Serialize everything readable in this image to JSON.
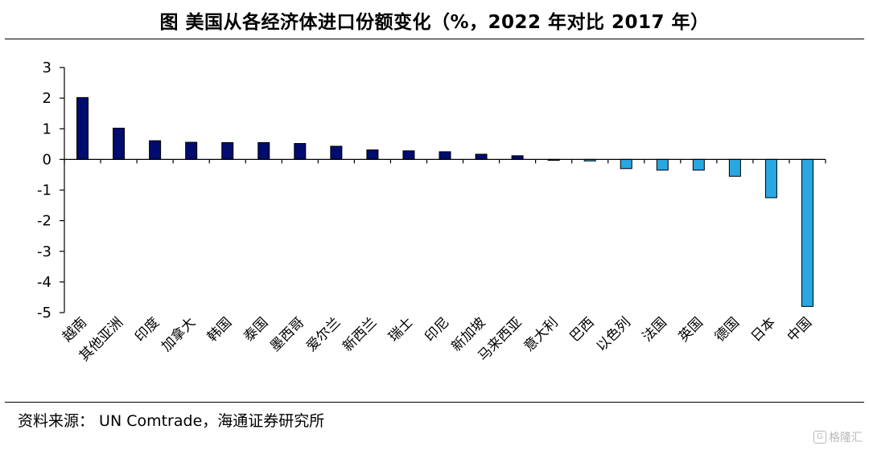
{
  "header": {
    "title": "图 美国从各经济体进口份额变化（%，2022 年对比 2017 年）"
  },
  "footer": {
    "source": "资料来源： UN Comtrade，海通证券研究所",
    "watermark": "格隆汇"
  },
  "colors": {
    "positive_bar": "#000c6e",
    "negative_bar": "#29a7e1",
    "bar_edge": "#000000",
    "axis": "#000000"
  },
  "chart_data": {
    "type": "bar",
    "title": "图 美国从各经济体进口份额变化（%，2022 年对比 2017 年）",
    "xlabel": "",
    "ylabel": "",
    "ylim": [
      -5,
      3
    ],
    "yticks": [
      3,
      2,
      1,
      0,
      -1,
      -2,
      -3,
      -4,
      -5
    ],
    "grid": false,
    "legend": "none",
    "categories": [
      "越南",
      "其他亚洲",
      "印度",
      "加拿大",
      "韩国",
      "泰国",
      "墨西哥",
      "爱尔兰",
      "新西兰",
      "瑞士",
      "印尼",
      "新加坡",
      "马来西亚",
      "意大利",
      "巴西",
      "以色列",
      "法国",
      "英国",
      "德国",
      "日本",
      "中国"
    ],
    "values": [
      2.02,
      1.02,
      0.61,
      0.56,
      0.55,
      0.55,
      0.52,
      0.43,
      0.31,
      0.28,
      0.25,
      0.17,
      0.12,
      -0.03,
      -0.05,
      -0.3,
      -0.35,
      -0.35,
      -0.55,
      -1.25,
      -4.8
    ]
  }
}
